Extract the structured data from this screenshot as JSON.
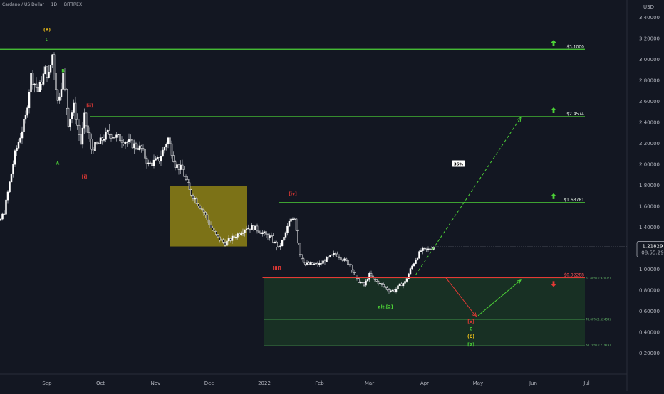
{
  "header": {
    "symbol": "Cardano / US Dollar",
    "interval": "1D",
    "exchange": "BITTREX",
    "sep": "·",
    "currency": "USD"
  },
  "price_tag": {
    "value": "1.21829",
    "timer": "08:55:29"
  },
  "colors": {
    "background": "#131722",
    "up_candle": "#ffffff",
    "down_candle": "#131722",
    "target_line": "#4cd137",
    "stop_line": "#e53935",
    "zone_yellow": "#827717",
    "zone_green": "#1b3a26",
    "arrow_green": "#4cd137",
    "arrow_red": "#e53935",
    "wave_red": "#e53935",
    "wave_green": "#4cd137",
    "wave_yellow": "#f5c518"
  },
  "chart_data": {
    "type": "candlestick",
    "title": "Cardano / US Dollar · 1D · BITTREX",
    "ylabel": "USD",
    "ylim": [
      0.1,
      3.6
    ],
    "y_ticks": [
      "3.40000",
      "3.20000",
      "3.00000",
      "2.80000",
      "2.60000",
      "2.40000",
      "2.20000",
      "2.00000",
      "1.80000",
      "1.60000",
      "1.40000",
      "1.20000",
      "1.00000",
      "0.80000",
      "0.60000",
      "0.40000",
      "0.20000"
    ],
    "x_ticks": [
      {
        "label": "Sep",
        "x": "2021-09-01"
      },
      {
        "label": "Oct",
        "x": "2021-10-01"
      },
      {
        "label": "Nov",
        "x": "2021-11-01"
      },
      {
        "label": "Dec",
        "x": "2021-12-01"
      },
      {
        "label": "2022",
        "x": "2022-01-01"
      },
      {
        "label": "Feb",
        "x": "2022-02-01"
      },
      {
        "label": "Mar",
        "x": "2022-03-01"
      },
      {
        "label": "Apr",
        "x": "2022-04-01"
      },
      {
        "label": "May",
        "x": "2022-05-01"
      },
      {
        "label": "Jun",
        "x": "2022-06-01"
      },
      {
        "label": "Jul",
        "x": "2022-07-01"
      }
    ],
    "price_path": [
      [
        "2021-07-25",
        1.25
      ],
      [
        "2021-08-01",
        1.3
      ],
      [
        "2021-08-08",
        1.55
      ],
      [
        "2021-08-14",
        2.1
      ],
      [
        "2021-08-20",
        2.45
      ],
      [
        "2021-08-23",
        2.85
      ],
      [
        "2021-08-27",
        2.7
      ],
      [
        "2021-08-31",
        2.9
      ],
      [
        "2021-09-02",
        2.85
      ],
      [
        "2021-09-04",
        3.05
      ],
      [
        "2021-09-07",
        2.6
      ],
      [
        "2021-09-10",
        2.85
      ],
      [
        "2021-09-13",
        2.4
      ],
      [
        "2021-09-16",
        2.55
      ],
      [
        "2021-09-20",
        2.2
      ],
      [
        "2021-09-22",
        2.45
      ],
      [
        "2021-09-26",
        2.15
      ],
      [
        "2021-09-30",
        2.2
      ],
      [
        "2021-10-05",
        2.3
      ],
      [
        "2021-10-12",
        2.25
      ],
      [
        "2021-10-18",
        2.2
      ],
      [
        "2021-10-24",
        2.15
      ],
      [
        "2021-10-28",
        2.0
      ],
      [
        "2021-11-03",
        2.05
      ],
      [
        "2021-11-08",
        2.25
      ],
      [
        "2021-11-12",
        2.0
      ],
      [
        "2021-11-16",
        1.95
      ],
      [
        "2021-11-20",
        1.75
      ],
      [
        "2021-11-24",
        1.65
      ],
      [
        "2021-11-28",
        1.55
      ],
      [
        "2021-12-02",
        1.4
      ],
      [
        "2021-12-06",
        1.3
      ],
      [
        "2021-12-10",
        1.25
      ],
      [
        "2021-12-14",
        1.3
      ],
      [
        "2021-12-18",
        1.35
      ],
      [
        "2021-12-22",
        1.4
      ],
      [
        "2021-12-26",
        1.4
      ],
      [
        "2021-12-31",
        1.35
      ],
      [
        "2022-01-05",
        1.3
      ],
      [
        "2022-01-09",
        1.2
      ],
      [
        "2022-01-12",
        1.3
      ],
      [
        "2022-01-15",
        1.45
      ],
      [
        "2022-01-18",
        1.5
      ],
      [
        "2022-01-21",
        1.15
      ],
      [
        "2022-01-24",
        1.05
      ],
      [
        "2022-01-28",
        1.05
      ],
      [
        "2022-02-01",
        1.05
      ],
      [
        "2022-02-05",
        1.1
      ],
      [
        "2022-02-10",
        1.15
      ],
      [
        "2022-02-14",
        1.1
      ],
      [
        "2022-02-18",
        1.05
      ],
      [
        "2022-02-22",
        0.9
      ],
      [
        "2022-02-26",
        0.85
      ],
      [
        "2022-03-01",
        0.95
      ],
      [
        "2022-03-04",
        0.9
      ],
      [
        "2022-03-08",
        0.85
      ],
      [
        "2022-03-12",
        0.8
      ],
      [
        "2022-03-15",
        0.8
      ],
      [
        "2022-03-18",
        0.85
      ],
      [
        "2022-03-21",
        0.88
      ],
      [
        "2022-03-24",
        1.0
      ],
      [
        "2022-03-27",
        1.1
      ],
      [
        "2022-03-30",
        1.18
      ],
      [
        "2022-04-03",
        1.19
      ],
      [
        "2022-04-06",
        1.22
      ]
    ],
    "horizontal_levels": [
      {
        "label": "$3.1000",
        "value": 3.1,
        "color": "green",
        "x_start": "2021-07-28",
        "x_end": "2022-06-30"
      },
      {
        "label": "$2.4574",
        "value": 2.4574,
        "color": "green",
        "x_start": "2021-09-25",
        "x_end": "2022-06-30"
      },
      {
        "label": "$1.63781",
        "value": 1.63781,
        "color": "green",
        "x_start": "2022-01-09",
        "x_end": "2022-06-30"
      },
      {
        "label": "$0.92288",
        "value": 0.92288,
        "color": "red",
        "x_start": "2021-12-31",
        "x_end": "2022-06-30"
      }
    ],
    "fib_levels": [
      {
        "label": "61.80%(0.92002)",
        "value": 0.92002
      },
      {
        "label": "78.60%(0.52409)",
        "value": 0.52409
      },
      {
        "label": "88.70%(0.27974)",
        "value": 0.27974
      }
    ],
    "zones": [
      {
        "name": "yellow-box",
        "x_start": "2021-11-09",
        "x_end": "2021-12-22",
        "y_low": 1.22,
        "y_high": 1.8
      },
      {
        "name": "green-box",
        "x_start": "2022-01-01",
        "x_end": "2022-06-30",
        "y_low": 0.27974,
        "y_high": 0.92002
      }
    ],
    "wave_labels": [
      {
        "text": "(B)",
        "x": "2021-09-01",
        "y": 3.27,
        "color": "yellow"
      },
      {
        "text": "C",
        "x": "2021-09-01",
        "y": 3.18,
        "color": "green"
      },
      {
        "text": "B",
        "x": "2021-09-10",
        "y": 2.88,
        "color": "green"
      },
      {
        "text": "A",
        "x": "2021-09-07",
        "y": 2.0,
        "color": "green"
      },
      {
        "text": "[ii]",
        "x": "2021-09-25",
        "y": 2.55,
        "color": "red"
      },
      {
        "text": "[i]",
        "x": "2021-09-22",
        "y": 1.87,
        "color": "red"
      },
      {
        "text": "[iv]",
        "x": "2022-01-17",
        "y": 1.71,
        "color": "red"
      },
      {
        "text": "[iii]",
        "x": "2022-01-08",
        "y": 1.0,
        "color": "red"
      },
      {
        "text": "alt.[2]",
        "x": "2022-03-10",
        "y": 0.63,
        "color": "green"
      },
      {
        "text": "[v]",
        "x": "2022-04-27",
        "y": 0.49,
        "color": "red"
      },
      {
        "text": "C",
        "x": "2022-04-27",
        "y": 0.42,
        "color": "green"
      },
      {
        "text": "(C)",
        "x": "2022-04-27",
        "y": 0.35,
        "color": "yellow"
      },
      {
        "text": "[2]",
        "x": "2022-04-27",
        "y": 0.27,
        "color": "green"
      }
    ],
    "annotations": [
      {
        "text": "35%",
        "x": "2022-04-20",
        "y": 2.0
      }
    ],
    "projection_lines": [
      {
        "name": "dashed-target",
        "from": [
          "2022-03-27",
          0.95
        ],
        "to": [
          "2022-05-25",
          2.45
        ],
        "style": "dashed"
      },
      {
        "name": "red-drop",
        "from": [
          "2022-04-13",
          0.92
        ],
        "to": [
          "2022-04-30",
          0.55
        ],
        "style": "solid"
      },
      {
        "name": "green-rise",
        "from": [
          "2022-05-01",
          0.56
        ],
        "to": [
          "2022-05-25",
          0.9
        ],
        "style": "solid"
      }
    ],
    "level_arrows": [
      {
        "dir": "up",
        "value": 3.1
      },
      {
        "dir": "up",
        "value": 2.4574
      },
      {
        "dir": "up",
        "value": 1.63781
      },
      {
        "dir": "down",
        "value": 0.92288
      }
    ]
  }
}
